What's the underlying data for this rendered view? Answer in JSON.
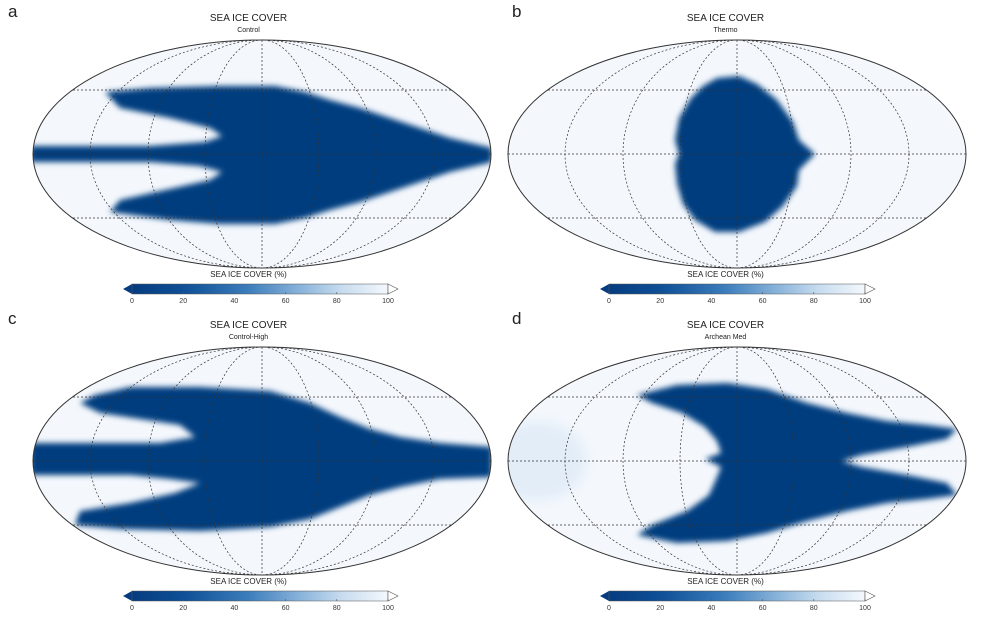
{
  "colors": {
    "ice": "#063c7f",
    "open": "#f4f8fd",
    "grid": "#333333"
  },
  "colorbar": {
    "title": "SEA ICE COVER (%)",
    "ticks": [
      "0",
      "20",
      "40",
      "60",
      "80",
      "100"
    ],
    "min": 0,
    "max": 100
  },
  "panels": [
    {
      "letter": "a",
      "title": "SEA ICE COVER",
      "subtitle": "Control"
    },
    {
      "letter": "b",
      "title": "SEA ICE COVER",
      "subtitle": "Thermo"
    },
    {
      "letter": "c",
      "title": "SEA ICE COVER",
      "subtitle": "Control-High"
    },
    {
      "letter": "d",
      "title": "SEA ICE COVER",
      "subtitle": "Archean Med"
    }
  ]
}
